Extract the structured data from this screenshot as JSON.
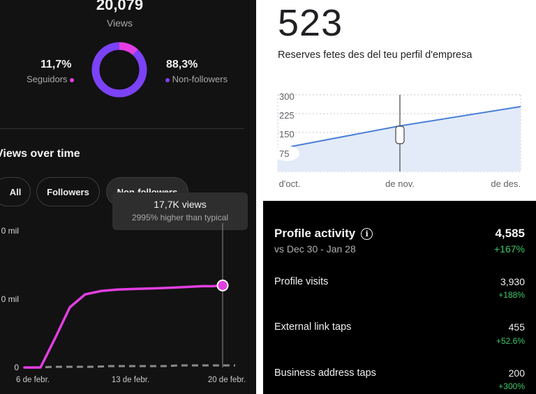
{
  "left_panel": {
    "total_views": "20,079",
    "views_label": "Views",
    "followers_pct": "11,7%",
    "followers_label": "Seguidors",
    "followers_color": "#e33ee3",
    "non_followers_pct": "88,3%",
    "non_followers_label": "Non-followers",
    "non_followers_color": "#7b42f6",
    "section_title": "Views over time",
    "filters": [
      {
        "label": "All",
        "selected": false
      },
      {
        "label": "Followers",
        "selected": false
      },
      {
        "label": "Non-followers",
        "selected": true
      }
    ],
    "tooltip": {
      "value": "17,7K views",
      "comparison": "2995% higher than typical"
    }
  },
  "left_chart": {
    "chart_data": {
      "type": "line",
      "title": "",
      "y_tick_labels": [
        "0",
        "0 mil",
        "0 mil"
      ],
      "x_tick_labels": [
        "6 de febr.",
        "13 de febr.",
        "20 de febr."
      ],
      "series": [
        {
          "color": "#e33ee3",
          "style": "solid",
          "values": [
            0,
            0,
            0,
            0.45,
            0.88,
            1.07,
            1.12,
            1.14,
            1.15,
            1.16,
            1.17,
            1.18,
            1.19,
            1.19,
            1.2
          ]
        },
        {
          "color": "#8a8a8a",
          "style": "dashed",
          "values": [
            0,
            0,
            0.01,
            0.01,
            0.01,
            0.01,
            0.02,
            0.02,
            0.02,
            0.02,
            0.02,
            0.03,
            0.03,
            0.03,
            0.03,
            0.03
          ]
        }
      ]
    }
  },
  "right_top": {
    "reservations_total": "523",
    "reservations_label": "Reserves fetes des del teu perfil d'empresa",
    "chart_data": {
      "type": "area",
      "title": "",
      "y_ticks": [
        75,
        150,
        225,
        300
      ],
      "ylim": [
        0,
        300
      ],
      "x_tick_labels": [
        "d'oct.",
        "de nov.",
        "de des."
      ],
      "series": [
        {
          "color": "#4a7fd8",
          "fill": "#e3ebf9",
          "points": [
            [
              0,
              88
            ],
            [
              1,
              178
            ],
            [
              2,
              254
            ]
          ]
        }
      ]
    }
  },
  "right_bottom": {
    "title": "Profile activity",
    "period": "vs Dec 30 - Jan 28",
    "total": "4,585",
    "total_change": "+167%",
    "rows": [
      {
        "label": "Profile visits",
        "value": "3,930",
        "change": "+188%"
      },
      {
        "label": "External link taps",
        "value": "455",
        "change": "+52.6%"
      },
      {
        "label": "Business address taps",
        "value": "200",
        "change": "+300%"
      }
    ]
  }
}
